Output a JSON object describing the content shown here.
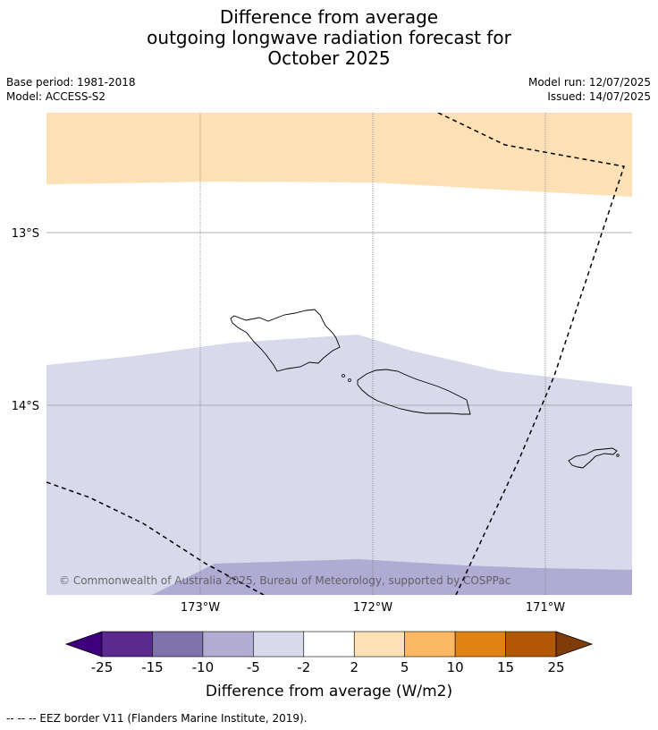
{
  "title": {
    "line1": "Difference from average",
    "line2": "outgoing longwave radiation forecast for",
    "line3": "October 2025"
  },
  "meta": {
    "base_period": "Base period: 1981-2018",
    "model": "Model: ACCESS-S2",
    "model_run": "Model run: 12/07/2025",
    "issued": "Issued: 14/07/2025"
  },
  "map": {
    "region": "Samoa",
    "lat_labels": [
      "13°S",
      "14°S"
    ],
    "lon_labels": [
      "173°W",
      "172°W",
      "171°W"
    ],
    "attribution": "© Commonwealth of Australia 2025, Bureau of Meteorology, supported by COSPPac",
    "colors": {
      "warm_band": "#fde0b6",
      "neutral_band": "#ffffff",
      "cool_band": "#d8d9ea",
      "cooler_band": "#b0abd3"
    },
    "icons": [
      "island-outline-icon",
      "eez-border-icon"
    ]
  },
  "colorbar": {
    "label": "Difference from average (W/m2)",
    "ticks": [
      "-25",
      "-15",
      "-10",
      "-5",
      "-2",
      "2",
      "5",
      "10",
      "15",
      "25"
    ],
    "colors": [
      "#3f007d",
      "#5b2a8e",
      "#8073ac",
      "#b2abd2",
      "#d8daeb",
      "#ffffff",
      "#fee0b6",
      "#fdb863",
      "#e08214",
      "#b35806",
      "#7f3b08"
    ]
  },
  "legend_note": "--  --  -- EEZ border V11 (Flanders Marine Institute, 2019)."
}
